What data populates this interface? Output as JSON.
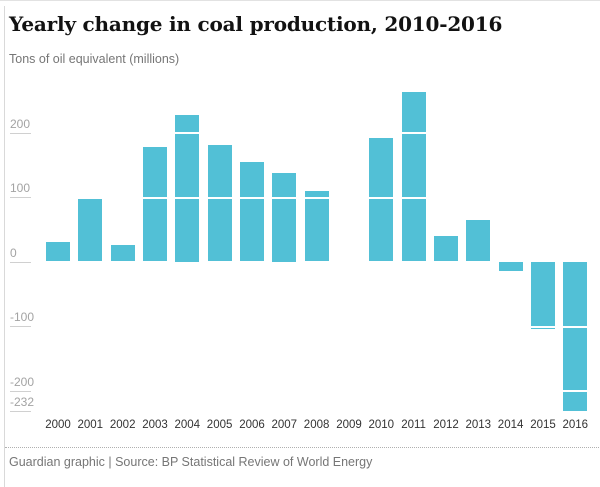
{
  "header": {
    "title": "Yearly change in coal production, 2010-2016",
    "subtitle": "Tons of oil equivalent (millions)"
  },
  "chart_data": {
    "type": "bar",
    "title": "Yearly change in coal production, 2010-2016",
    "subtitle": "Tons of oil equivalent (millions)",
    "categories": [
      "2000",
      "2001",
      "2002",
      "2003",
      "2004",
      "2005",
      "2006",
      "2007",
      "2008",
      "2009",
      "2010",
      "2011",
      "2012",
      "2013",
      "2014",
      "2015",
      "2016"
    ],
    "values": [
      30,
      98,
      25,
      178,
      228,
      180,
      155,
      138,
      110,
      0,
      192,
      263,
      40,
      65,
      -15,
      -105,
      -232
    ],
    "ylabel": "Tons of oil equivalent (millions)",
    "xlabel": "",
    "ylim": [
      -250,
      275
    ],
    "yticks": [
      200,
      100,
      0,
      -100,
      -200,
      -232
    ],
    "grid_values": [
      200,
      100,
      -100,
      -200
    ],
    "grid_on_bars_only": true,
    "legend_position": "none",
    "bar_color": "#52c0d6"
  },
  "colors": {
    "bar": "#52c0d6",
    "title_text": "#121212",
    "muted_text": "#767676",
    "axis_text": "#a3a3a3",
    "tick_line": "#d0d0d0",
    "year_text": "#333333",
    "frame_border": "#d9d9d9"
  },
  "footer": {
    "text": "Guardian graphic | Source: BP Statistical Review of World Energy"
  }
}
